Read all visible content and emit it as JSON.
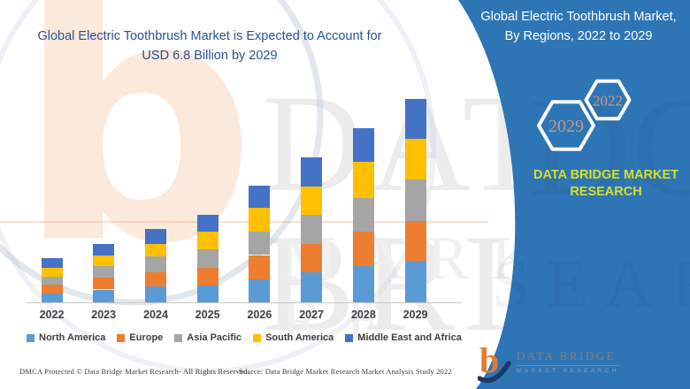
{
  "left_title": {
    "line1": "Global Electric Toothbrush Market is Expected to Account for",
    "line2": "USD 6.8 Billion by 2029",
    "color": "#2b5192"
  },
  "chart_data": {
    "type": "bar",
    "stacked": true,
    "title": "Global Electric Toothbrush Market is Expected to Account for USD 6.8 Billion by 2029",
    "unit": "USD Billion",
    "categories": [
      "2022",
      "2023",
      "2024",
      "2025",
      "2026",
      "2027",
      "2028",
      "2029"
    ],
    "series": [
      {
        "name": "North America",
        "color": "#5B9BD5",
        "values": [
          0.3,
          0.43,
          0.52,
          0.57,
          0.78,
          1.01,
          1.22,
          1.38
        ]
      },
      {
        "name": "Europe",
        "color": "#ED7D31",
        "values": [
          0.29,
          0.4,
          0.49,
          0.58,
          0.8,
          0.95,
          1.14,
          1.33
        ]
      },
      {
        "name": "Asia Pacific",
        "color": "#A5A5A5",
        "values": [
          0.28,
          0.37,
          0.52,
          0.62,
          0.79,
          0.98,
          1.14,
          1.4
        ]
      },
      {
        "name": "South America",
        "color": "#FFC000",
        "values": [
          0.29,
          0.37,
          0.41,
          0.59,
          0.79,
          0.93,
          1.19,
          1.36
        ]
      },
      {
        "name": "Middle East and Africa",
        "color": "#4472C4",
        "values": [
          0.32,
          0.39,
          0.51,
          0.56,
          0.73,
          0.99,
          1.13,
          1.33
        ]
      }
    ],
    "totals": [
      1.48,
      1.96,
      2.45,
      2.92,
      3.89,
      4.86,
      5.82,
      6.8
    ],
    "ylim": [
      0,
      6.8
    ],
    "gridlines": false,
    "y_axis_visible": false,
    "legend_position": "bottom"
  },
  "panel": {
    "bg_color": "#2E75B6",
    "title_line1": "Global Electric Toothbrush Market,",
    "title_line2": "By Regions, 2022 to 2029",
    "hex_back_year": "2029",
    "hex_front_year": "2022",
    "hex_year_color": "#c49a82",
    "brand_line1": "DATA BRIDGE MARKET",
    "brand_line2": "RESEARCH",
    "brand_color": "#d8df25",
    "logo_name": "DATA BRIDGE",
    "logo_tagline": "MARKET RESEARCH"
  },
  "watermark": {
    "letter": "b",
    "word1": "DATA BRI",
    "word2": "MARKET RE"
  },
  "footer": {
    "left": "DMCA Protected © Data Bridge Market Research- All Rights Reserved.",
    "right": "Source: Data Bridge Market Research Market Analysis Study 2022"
  }
}
